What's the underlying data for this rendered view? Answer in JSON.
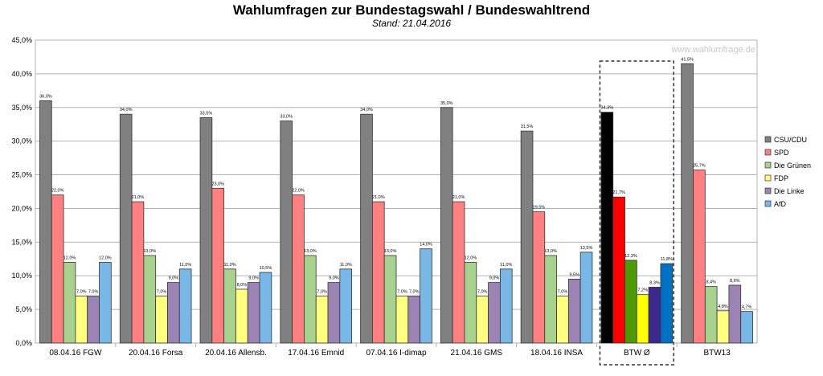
{
  "chart_data": {
    "type": "bar",
    "title": "Wahlumfragen zur Bundestagswahl / Bundeswahltrend",
    "subtitle": "Stand: 21.04.2016",
    "watermark": "www.wahlumfrage.de",
    "categories": [
      "08.04.16 FGW",
      "20.04.16 Forsa",
      "20.04.16 Allensb.",
      "17.04.16 Emnid",
      "07.04.16 I-dimap",
      "21.04.16 GMS",
      "18.04.16 INSA",
      "BTW Ø",
      "BTW13"
    ],
    "series": [
      {
        "name": "CSU/CDU",
        "color": "#808080",
        "values": [
          36.0,
          34.0,
          33.5,
          33.0,
          34.0,
          35.0,
          31.5,
          34.3,
          41.5
        ],
        "labels": [
          "36,0%",
          "34,0%",
          "33,5%",
          "33,0%",
          "34,0%",
          "35,0%",
          "31,5%",
          "34,3%",
          "41,5%"
        ]
      },
      {
        "name": "SPD",
        "color": "#ff8080",
        "values": [
          22.0,
          21.0,
          23.0,
          22.0,
          21.0,
          21.0,
          19.5,
          21.7,
          25.7
        ],
        "labels": [
          "22,0%",
          "21,0%",
          "23,0%",
          "22,0%",
          "21,0%",
          "21,0%",
          "19,5%",
          "21,7%",
          "25,7%"
        ]
      },
      {
        "name": "Die Grünen",
        "color": "#a9d18e",
        "values": [
          12.0,
          13.0,
          11.0,
          13.0,
          13.0,
          12.0,
          13.0,
          12.3,
          8.4
        ],
        "labels": [
          "12,0%",
          "13,0%",
          "11,0%",
          "13,0%",
          "13,0%",
          "12,0%",
          "13,0%",
          "12,3%",
          "8,4%"
        ]
      },
      {
        "name": "FDP",
        "color": "#ffff80",
        "values": [
          7.0,
          7.0,
          8.0,
          7.0,
          7.0,
          7.0,
          7.0,
          7.2,
          4.8
        ],
        "labels": [
          "7,0%",
          "7,0%",
          "8,0%",
          "7,0%",
          "7,0%",
          "7,0%",
          "7,0%",
          "7,2%",
          "4,8%"
        ]
      },
      {
        "name": "Die Linke",
        "color": "#9b84b4",
        "values": [
          7.0,
          9.0,
          9.0,
          9.0,
          7.0,
          9.0,
          9.5,
          8.3,
          8.6
        ],
        "labels": [
          "7,0%",
          "9,0%",
          "9,0%",
          "9,0%",
          "7,0%",
          "9,0%",
          "9,5%",
          "8,3%",
          "8,6%"
        ]
      },
      {
        "name": "AfD",
        "color": "#79b8e6",
        "values": [
          12.0,
          11.0,
          10.5,
          11.0,
          14.0,
          11.0,
          13.5,
          11.8,
          4.7
        ],
        "labels": [
          "12,0%",
          "11,0%",
          "10,5%",
          "11,0%",
          "14,0%",
          "11,0%",
          "13,5%",
          "11,8%",
          "4,7%"
        ]
      }
    ],
    "highlight": {
      "category_index": 7,
      "colors": [
        "#000000",
        "#ff0000",
        "#4e9a06",
        "#ffff00",
        "#3b2a8c",
        "#0070c0"
      ]
    },
    "y_ticks": [
      "0,0%",
      "5,0%",
      "10,0%",
      "15,0%",
      "20,0%",
      "25,0%",
      "30,0%",
      "35,0%",
      "40,0%",
      "45,0%"
    ],
    "ylim": [
      0,
      45
    ],
    "grid": true,
    "legend_position": "right"
  }
}
